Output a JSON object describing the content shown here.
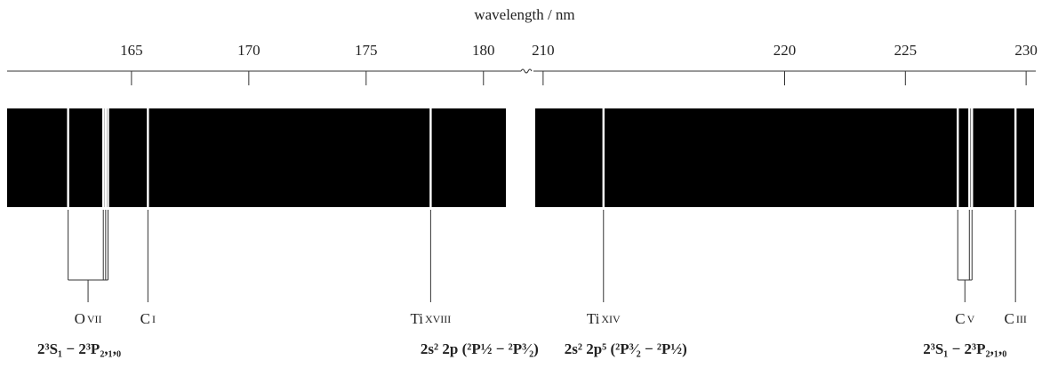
{
  "figure": {
    "axis_label": "wavelength / nm",
    "segments": [
      {
        "range": [
          159.7,
          181.6
        ],
        "ticks": [
          165,
          170,
          175,
          180
        ]
      },
      {
        "range": [
          209.6,
          230.4
        ],
        "ticks": [
          210,
          220,
          225,
          230
        ]
      }
    ],
    "lines": [
      {
        "ion": "O",
        "stage": "VII",
        "wavelengths": [
          162.3,
          163.8,
          163.9,
          164.0
        ],
        "transition": "2³S₁ − 2³P₂,₁,₀"
      },
      {
        "ion": "C",
        "stage": "I",
        "wavelengths": [
          165.7
        ]
      },
      {
        "ion": "Ti",
        "stage": "XVIII",
        "wavelengths": [
          177.75
        ],
        "transition": "2s² 2p (²P½ − ²P³⁄₂)"
      },
      {
        "ion": "Ti",
        "stage": "XIV",
        "wavelengths": [
          212.5
        ],
        "transition": "2s² 2p⁵ (²P³⁄₂ − ²P½)"
      },
      {
        "ion": "C",
        "stage": "V",
        "wavelengths": [
          227.17,
          227.65,
          227.76
        ],
        "transition": "2³S₁ − 2³P₂,₁,₀"
      },
      {
        "ion": "C",
        "stage": "III",
        "wavelengths": [
          229.56
        ]
      }
    ]
  }
}
